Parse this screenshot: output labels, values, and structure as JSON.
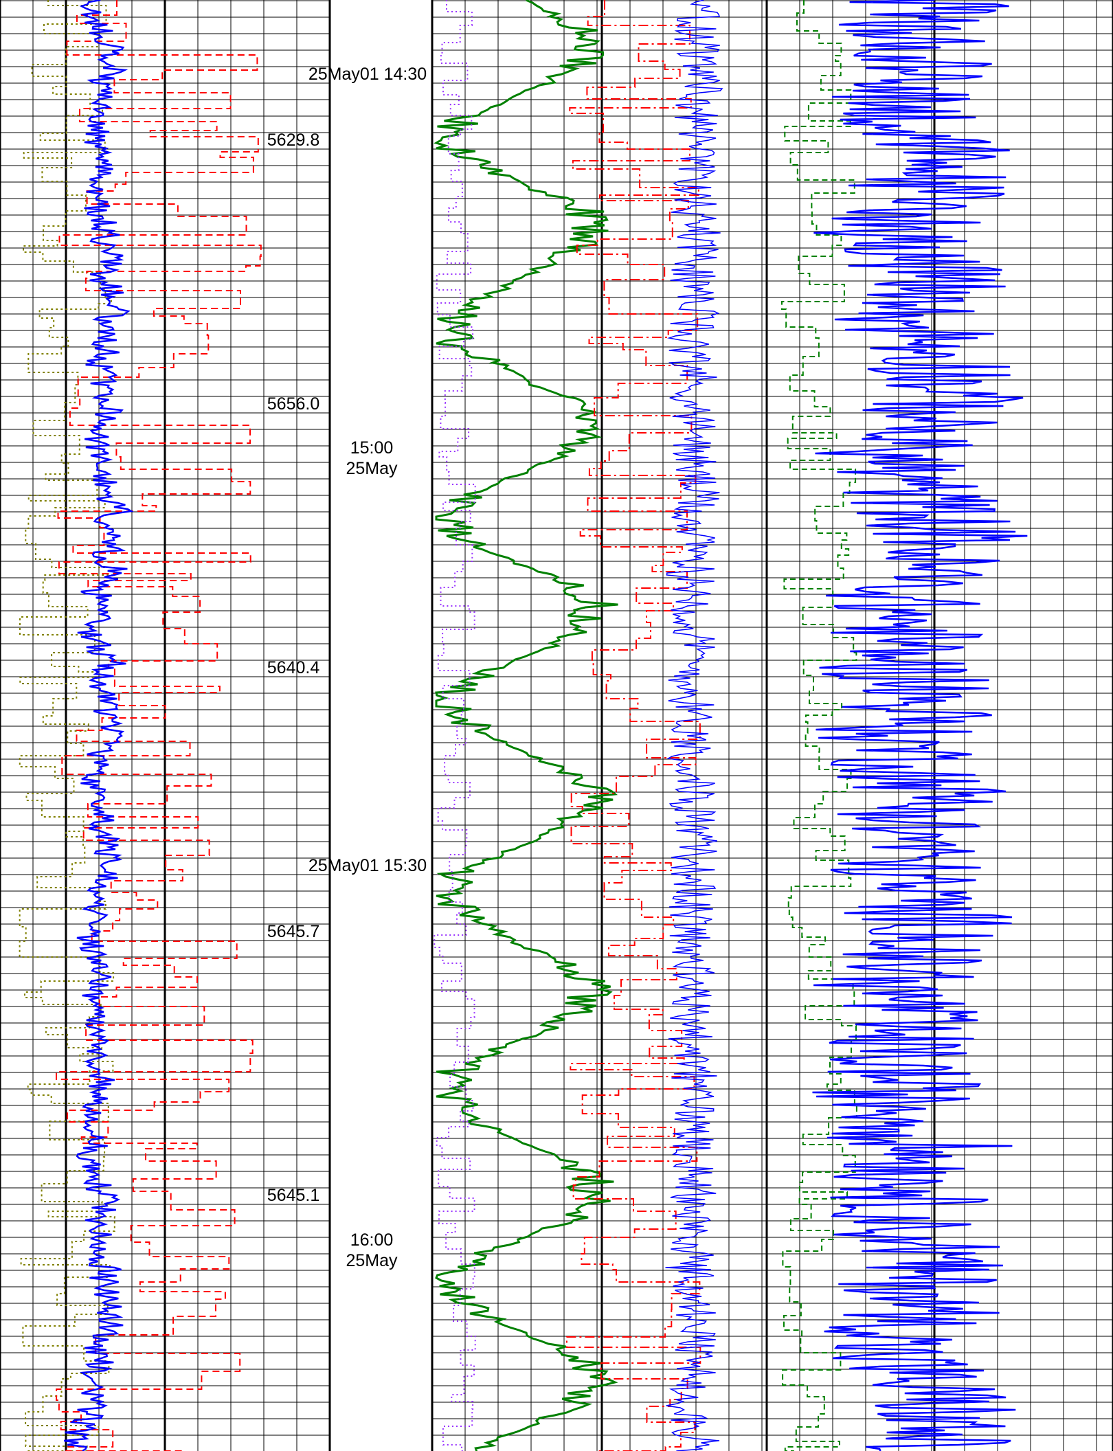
{
  "chart_data": {
    "type": "line",
    "title": "",
    "depth_labels": [
      "5629.8",
      "5656.0",
      "5640.4",
      "5645.7",
      "5645.1"
    ],
    "time_labels": [
      {
        "line1": "25May01 14:30",
        "line2": ""
      },
      {
        "line1": "15:00",
        "line2": "25May"
      },
      {
        "line1": "25May01 15:30",
        "line2": ""
      },
      {
        "line1": "16:00",
        "line2": "25May"
      }
    ],
    "time_range": [
      "25May01 14:20",
      "25May01 16:12"
    ],
    "tracks": [
      {
        "name": "left",
        "grid": "linear",
        "series_colors": [
          "#0000ff",
          "#ff0000",
          "#808000"
        ]
      },
      {
        "name": "center",
        "grid": "linear",
        "series_colors": [
          "#008000",
          "#ff0000",
          "#0000ff",
          "#9933ff"
        ]
      },
      {
        "name": "right",
        "grid": "linear",
        "series_colors": [
          "#0000ff",
          "#008000"
        ]
      }
    ],
    "grid": true,
    "colors": {
      "blue": "#0000ff",
      "red": "#ff0000",
      "green": "#008000",
      "olive": "#808000",
      "purple": "#9933ff",
      "grid": "#000000"
    }
  }
}
